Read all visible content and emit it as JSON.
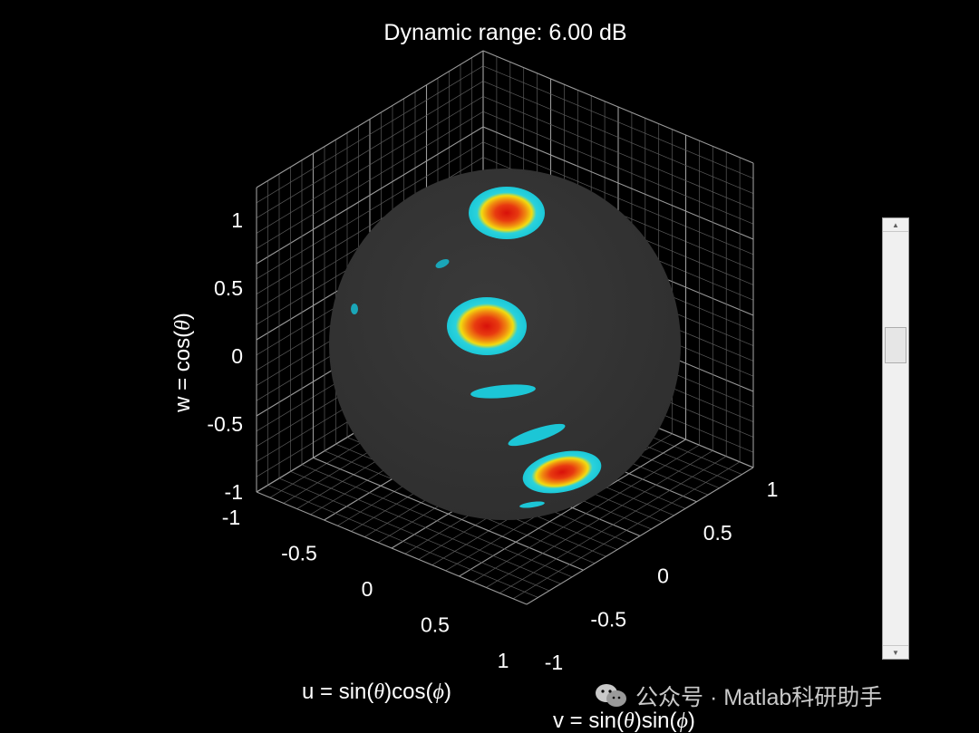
{
  "window": {
    "title": "Dynamic range: 6.00 dB"
  },
  "axes": {
    "xlabel_prefix": "u = sin(",
    "xlabel_theta": "θ",
    "xlabel_mid": ")cos(",
    "xlabel_phi": "ϕ",
    "xlabel_suffix": ")",
    "ylabel_prefix": "v = sin(",
    "ylabel_theta": "θ",
    "ylabel_mid": ")sin(",
    "ylabel_phi": "ϕ",
    "ylabel_suffix": ")",
    "zlabel_prefix": "w = cos(",
    "zlabel_theta": "θ",
    "zlabel_suffix": ")"
  },
  "chart_data": {
    "type": "surface-3d",
    "title": "Dynamic range: 6.00 dB",
    "xlabel": "u = sin(θ)cos(ϕ)",
    "ylabel": "v = sin(θ)sin(ϕ)",
    "zlabel": "w = cos(θ)",
    "xlim": [
      -1,
      1
    ],
    "ylim": [
      -1,
      1
    ],
    "zlim": [
      -1,
      1
    ],
    "x_ticks": [
      "-1",
      "-0.5",
      "0",
      "0.5",
      "1"
    ],
    "y_ticks": [
      "-1",
      "-0.5",
      "0",
      "0.5",
      "1"
    ],
    "z_ticks": [
      "-1",
      "-0.5",
      "0",
      "0.5",
      "1"
    ],
    "grid": true,
    "background": "#000000",
    "sphere_color": "#333333",
    "colormap": [
      "#00d8e0",
      "#f0e000",
      "#f08000",
      "#e01000"
    ]
  },
  "scrollbar": {
    "up_icon": "▲",
    "down_icon": "▼"
  },
  "watermark": {
    "text": "公众号 · Matlab科研助手"
  }
}
